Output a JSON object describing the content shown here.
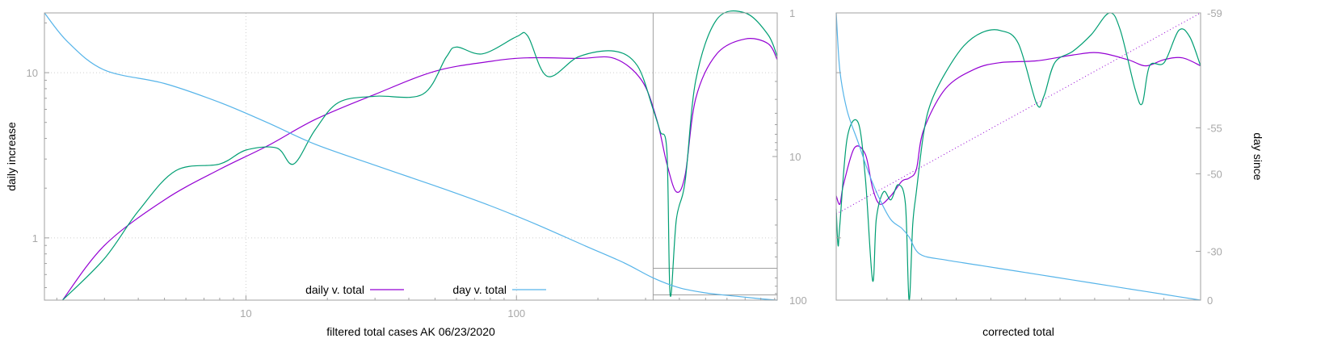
{
  "chart_data": [
    {
      "type": "line",
      "xlabel": "filtered total cases AK 06/23/2020",
      "ylabel": "daily increase",
      "x_scale": "log",
      "xlim": [
        1.8,
        920
      ],
      "ylim_left": [
        0.42,
        23
      ],
      "y_scale_left": "log",
      "ylim_right": [
        1,
        100
      ],
      "y_scale_right": "log",
      "right_axis_reversed": true,
      "grid": true,
      "legend_position": "bottom",
      "x_tick_labels": [
        "10",
        "100"
      ],
      "y_left_tick_labels": [
        "10",
        "1"
      ],
      "y_right_tick_labels": [
        "1",
        "10",
        "100"
      ],
      "series": [
        {
          "name": "daily v. total",
          "color": "#9400d3",
          "axis": "left",
          "x": [
            2.1,
            3,
            5,
            8,
            12,
            18,
            30,
            50,
            80,
            110,
            170,
            230,
            290,
            330,
            360,
            390,
            420,
            460,
            550,
            700,
            850,
            920
          ],
          "y": [
            0.42,
            0.9,
            1.7,
            2.6,
            3.6,
            5.2,
            7.4,
            10.2,
            11.7,
            12.3,
            12.2,
            12.2,
            9.0,
            5.2,
            2.8,
            1.9,
            2.4,
            7.0,
            13.0,
            16.0,
            15.0,
            12.0
          ]
        },
        {
          "name": "",
          "color": "#009e73",
          "axis": "left",
          "x": [
            2.1,
            3,
            4,
            5.5,
            8,
            10,
            13,
            15,
            18,
            22,
            30,
            45,
            55,
            60,
            75,
            100,
            110,
            130,
            170,
            230,
            280,
            320,
            340,
            360,
            370,
            390,
            420,
            460,
            550,
            700,
            850,
            920
          ],
          "y": [
            0.42,
            0.75,
            1.45,
            2.55,
            2.8,
            3.4,
            3.5,
            2.8,
            4.5,
            6.6,
            7.2,
            7.4,
            12.4,
            14.3,
            13.0,
            16.5,
            16.7,
            9.5,
            12.5,
            13.5,
            11.0,
            6.0,
            4.4,
            3.3,
            0.45,
            1.3,
            2.2,
            9.0,
            21.0,
            23.0,
            17.0,
            12.5
          ]
        },
        {
          "name": "day v. total",
          "color": "#56b4e9",
          "axis": "right",
          "x": [
            1.8,
            2.2,
            3,
            5,
            8,
            12,
            18,
            30,
            50,
            80,
            120,
            180,
            250,
            320,
            400,
            500,
            650,
            800,
            920
          ],
          "y": [
            1,
            1.6,
            2.5,
            3.1,
            4.2,
            5.8,
            8.2,
            11.5,
            16.0,
            22.0,
            30.0,
            42.0,
            55.0,
            70.0,
            82.0,
            89.0,
            94.0,
            98.0,
            100.0
          ]
        }
      ],
      "reference_lines": [
        {
          "x": 320,
          "color": "#a0a0a0"
        },
        {
          "y_right": 60,
          "x_from": 320,
          "color": "#a0a0a0"
        },
        {
          "y_right": 92,
          "x_from": 320,
          "color": "#a0a0a0"
        }
      ]
    },
    {
      "type": "line",
      "xlabel": "corrected total",
      "ylabel": "day since",
      "xlim": [
        0,
        1
      ],
      "ylim_left": [
        0.42,
        23
      ],
      "y_scale_left": "log",
      "ylim_right": [
        0,
        100
      ],
      "grid": false,
      "y_right_tick_labels": [
        "-59",
        "-55",
        "-50",
        "-30",
        "0"
      ],
      "y_right_tick_fractions": [
        0.0,
        0.4,
        0.56,
        0.83,
        1.0
      ],
      "series": [
        {
          "name": "",
          "color": "#9400d3",
          "axis": "left",
          "x": [
            0.0,
            0.01,
            0.02,
            0.05,
            0.08,
            0.1,
            0.12,
            0.15,
            0.18,
            0.2,
            0.22,
            0.24,
            0.3,
            0.38,
            0.45,
            0.55,
            0.65,
            0.72,
            0.8,
            0.85,
            0.9,
            0.95,
            1.0
          ],
          "y": [
            1.8,
            1.6,
            2.1,
            3.5,
            3.2,
            2.0,
            1.6,
            1.8,
            2.2,
            2.3,
            2.6,
            4.5,
            8.0,
            10.5,
            11.5,
            11.8,
            12.8,
            13.2,
            12.0,
            11.0,
            12.0,
            12.3,
            11.0
          ]
        },
        {
          "name": "",
          "color": "#009e73",
          "axis": "left",
          "x": [
            0.0,
            0.005,
            0.01,
            0.03,
            0.06,
            0.08,
            0.1,
            0.11,
            0.13,
            0.15,
            0.17,
            0.19,
            0.2,
            0.21,
            0.22,
            0.24,
            0.26,
            0.3,
            0.35,
            0.4,
            0.45,
            0.5,
            0.55,
            0.57,
            0.6,
            0.65,
            0.7,
            0.75,
            0.78,
            0.82,
            0.84,
            0.86,
            0.9,
            0.94,
            0.97,
            1.0
          ],
          "y": [
            1.5,
            0.9,
            1.2,
            4.0,
            5.0,
            2.3,
            0.55,
            1.3,
            1.9,
            1.7,
            2.1,
            1.6,
            0.42,
            1.2,
            1.9,
            4.3,
            6.6,
            10.0,
            14.5,
            17.5,
            18.0,
            15.0,
            6.5,
            7.2,
            11.5,
            13.5,
            17.0,
            23.0,
            18.0,
            8.0,
            6.5,
            11.0,
            11.5,
            18.0,
            16.5,
            11.0
          ]
        },
        {
          "name": "",
          "color": "#56b4e9",
          "axis": "right",
          "x": [
            0.0,
            0.01,
            0.03,
            0.06,
            0.09,
            0.12,
            0.15,
            0.18,
            0.2,
            0.23,
            0.3,
            0.4,
            0.5,
            0.6,
            0.7,
            0.8,
            0.9,
            1.0
          ],
          "y": [
            0,
            20,
            34,
            45,
            56,
            65,
            72,
            75,
            78,
            84,
            86,
            88,
            90,
            92,
            94,
            96,
            98,
            100
          ]
        },
        {
          "name": "",
          "color": "#9400d3",
          "axis": "left",
          "dotted": true,
          "x": [
            0.0,
            1.0
          ],
          "y_frac": [
            0.7,
            0.0
          ]
        }
      ]
    }
  ]
}
